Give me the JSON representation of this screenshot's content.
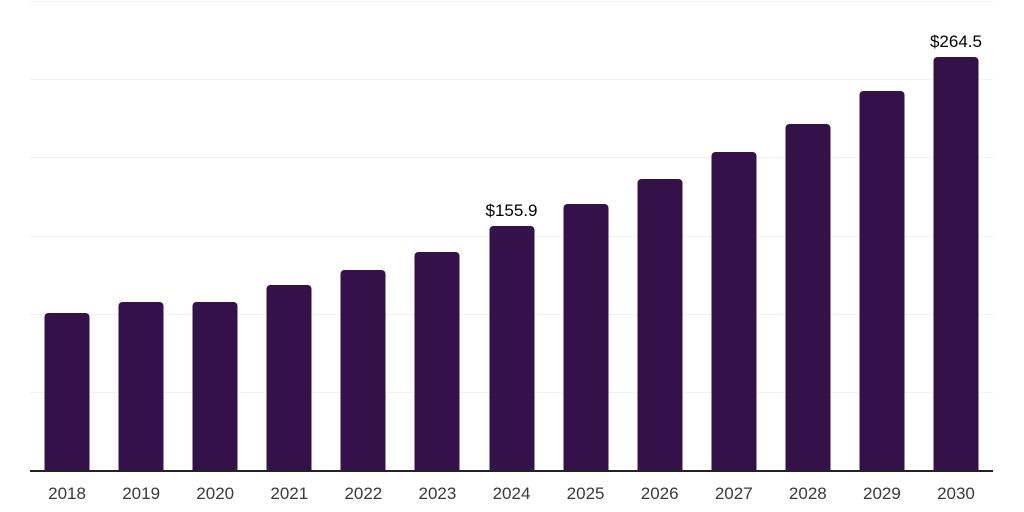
{
  "chart_data": {
    "type": "bar",
    "title": "",
    "xlabel": "",
    "ylabel": "",
    "categories": [
      "2018",
      "2019",
      "2020",
      "2021",
      "2022",
      "2023",
      "2024",
      "2025",
      "2026",
      "2027",
      "2028",
      "2029",
      "2030"
    ],
    "values": [
      100.4,
      107.7,
      107.7,
      118.4,
      127.9,
      139.6,
      155.9,
      170.2,
      186.0,
      203.4,
      221.5,
      242.4,
      264.5
    ],
    "data_labels": {
      "2024": "$155.9",
      "2030": "$264.5"
    },
    "ylim": [
      0,
      300
    ],
    "gridline_step": 50,
    "grid": true,
    "legend": false,
    "colors": {
      "bar": "#35114A",
      "axis_line": "#222222",
      "gridline": "#f1f1f1",
      "tick_label": "#3a3a3a",
      "value_label": "#000000",
      "background": "#ffffff"
    }
  }
}
